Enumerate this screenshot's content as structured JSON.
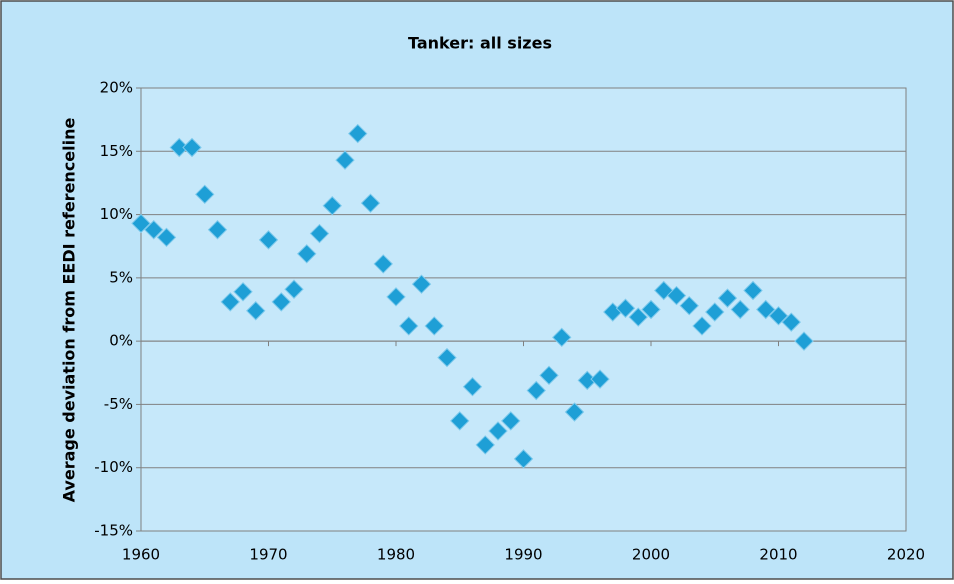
{
  "chart_data": {
    "type": "scatter",
    "title": "Tanker: all sizes",
    "y_label": "Average deviation from EEDI referenceline",
    "x": [
      1960,
      1961,
      1962,
      1963,
      1964,
      1965,
      1966,
      1967,
      1968,
      1969,
      1970,
      1971,
      1972,
      1973,
      1974,
      1975,
      1976,
      1977,
      1978,
      1979,
      1980,
      1981,
      1982,
      1983,
      1984,
      1985,
      1986,
      1987,
      1988,
      1989,
      1990,
      1991,
      1992,
      1993,
      1994,
      1995,
      1996,
      1997,
      1998,
      1999,
      2000,
      2001,
      2002,
      2003,
      2004,
      2005,
      2006,
      2007,
      2008,
      2009,
      2010,
      2011,
      2012
    ],
    "values": [
      9.3,
      8.8,
      8.2,
      15.3,
      15.3,
      11.6,
      8.8,
      3.1,
      3.9,
      2.4,
      8.0,
      3.1,
      4.1,
      6.9,
      8.5,
      10.7,
      14.3,
      16.4,
      10.9,
      6.1,
      3.5,
      1.2,
      4.5,
      1.2,
      -1.3,
      -6.3,
      -3.6,
      -8.2,
      -7.1,
      -6.3,
      -9.3,
      -3.9,
      -2.7,
      0.3,
      -5.6,
      -3.1,
      -3.0,
      2.3,
      2.6,
      1.9,
      2.5,
      4.0,
      3.6,
      2.8,
      1.2,
      2.3,
      3.4,
      2.5,
      4.0,
      2.5,
      2.0,
      1.5,
      0.0
    ],
    "color": "#1e9fd6",
    "xlim": [
      1960,
      2020
    ],
    "xticks": [
      1960,
      1970,
      1980,
      1990,
      2000,
      2010,
      2020
    ],
    "ylim": [
      -15,
      20
    ],
    "yticks": [
      {
        "value": -15,
        "label": "-15%"
      },
      {
        "value": -10,
        "label": "-10%"
      },
      {
        "value": -5,
        "label": "-5%"
      },
      {
        "value": 0,
        "label": "0%"
      },
      {
        "value": 5,
        "label": "5%"
      },
      {
        "value": 10,
        "label": "10%"
      },
      {
        "value": 15,
        "label": "15%"
      },
      {
        "value": 20,
        "label": "20%"
      }
    ],
    "grid": true
  }
}
